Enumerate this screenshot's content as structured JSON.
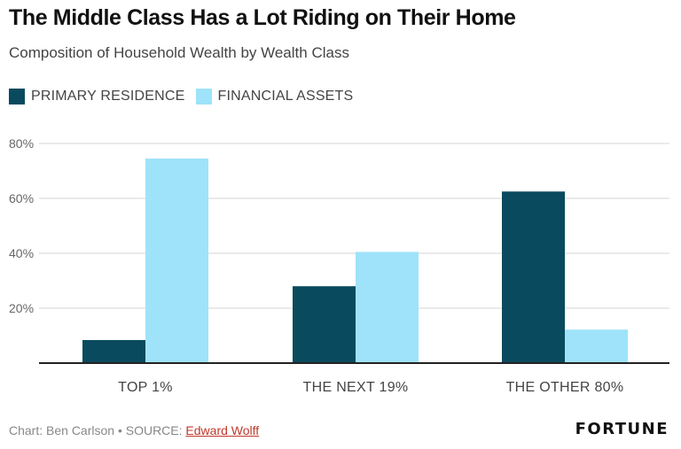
{
  "chart_data": {
    "type": "bar",
    "title": "The Middle Class Has a Lot Riding on Their Home",
    "subtitle": "Composition of Household Wealth by Wealth Class",
    "categories": [
      "TOP 1%",
      "THE NEXT 19%",
      "THE OTHER 80%"
    ],
    "series": [
      {
        "name": "PRIMARY RESIDENCE",
        "values": [
          8.4,
          28,
          62.5
        ],
        "color": "#0a4a5e"
      },
      {
        "name": "FINANCIAL ASSETS",
        "values": [
          74.5,
          40.5,
          12.2
        ],
        "color": "#9ee3fa"
      }
    ],
    "ylim": [
      0,
      80
    ],
    "yticks": [
      20,
      40,
      60,
      80
    ],
    "ytick_labels": [
      "20%",
      "40%",
      "60%",
      "80%"
    ],
    "xlabel": "",
    "ylabel": "",
    "grid": true,
    "legend_position": "top-left"
  },
  "footer": {
    "credit": "Chart: Ben Carlson • SOURCE: ",
    "source_link": "Edward Wolff",
    "logo": "FORTUNE"
  }
}
